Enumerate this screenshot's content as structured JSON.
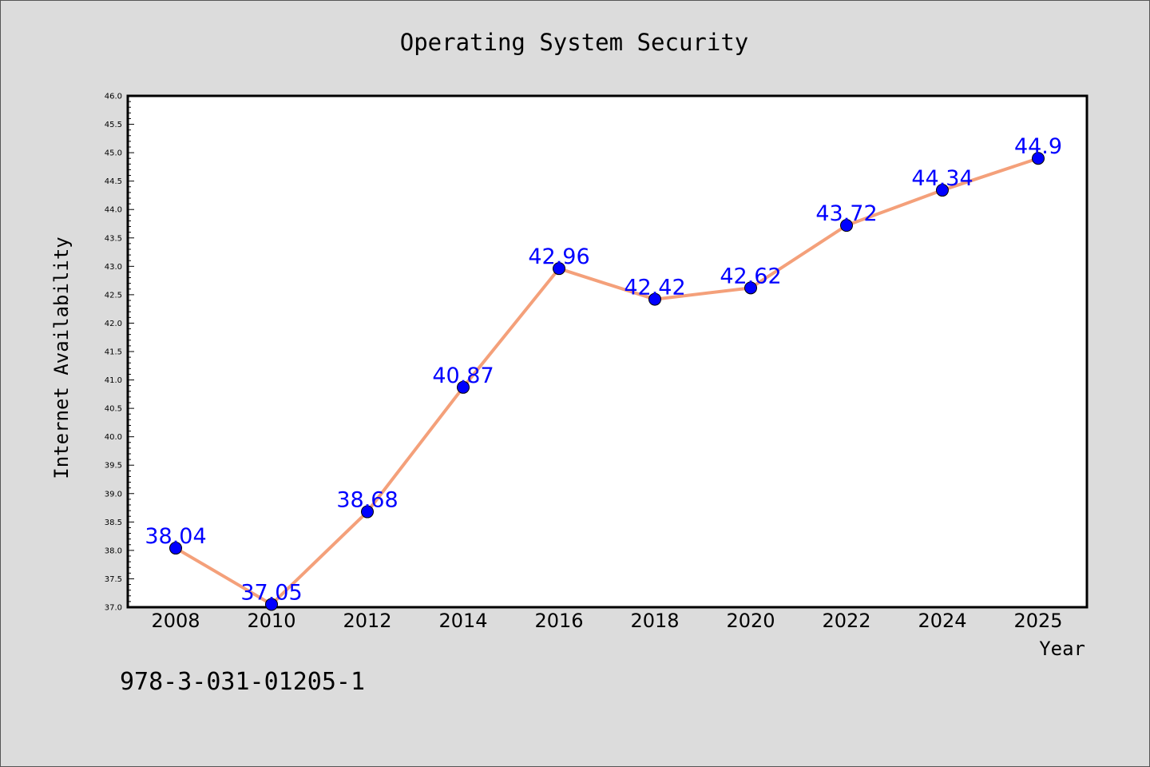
{
  "chart_data": {
    "type": "line",
    "title": "Operating System Security",
    "xlabel": "Year",
    "ylabel": "Internet Availability",
    "categories": [
      "2008",
      "2010",
      "2012",
      "2014",
      "2016",
      "2018",
      "2020",
      "2022",
      "2024",
      "2025"
    ],
    "series": [
      {
        "values": [
          38.04,
          37.05,
          38.68,
          40.87,
          42.96,
          42.42,
          42.62,
          43.72,
          44.34,
          44.9
        ],
        "data_labels": [
          "38.04",
          "37.05",
          "38.68",
          "40.87",
          "42.96",
          "42.42",
          "42.62",
          "43.72",
          "44.34",
          "44.9"
        ],
        "line_color": "#f4a07a",
        "marker_color": "#0000ff"
      }
    ],
    "ylim": [
      37.0,
      46.0
    ],
    "yticks": [
      "37.0",
      "37.5",
      "38.0",
      "38.5",
      "39.0",
      "39.5",
      "40.0",
      "40.5",
      "41.0",
      "41.5",
      "42.0",
      "42.5",
      "43.0",
      "43.5",
      "44.0",
      "44.5",
      "45.0",
      "45.5",
      "46.0"
    ],
    "grid": false,
    "data_label_color": "#0000ff",
    "background_color": "#dcdcdc",
    "plot_background": "#ffffff"
  },
  "footer": {
    "isbn": "978-3-031-01205-1"
  }
}
